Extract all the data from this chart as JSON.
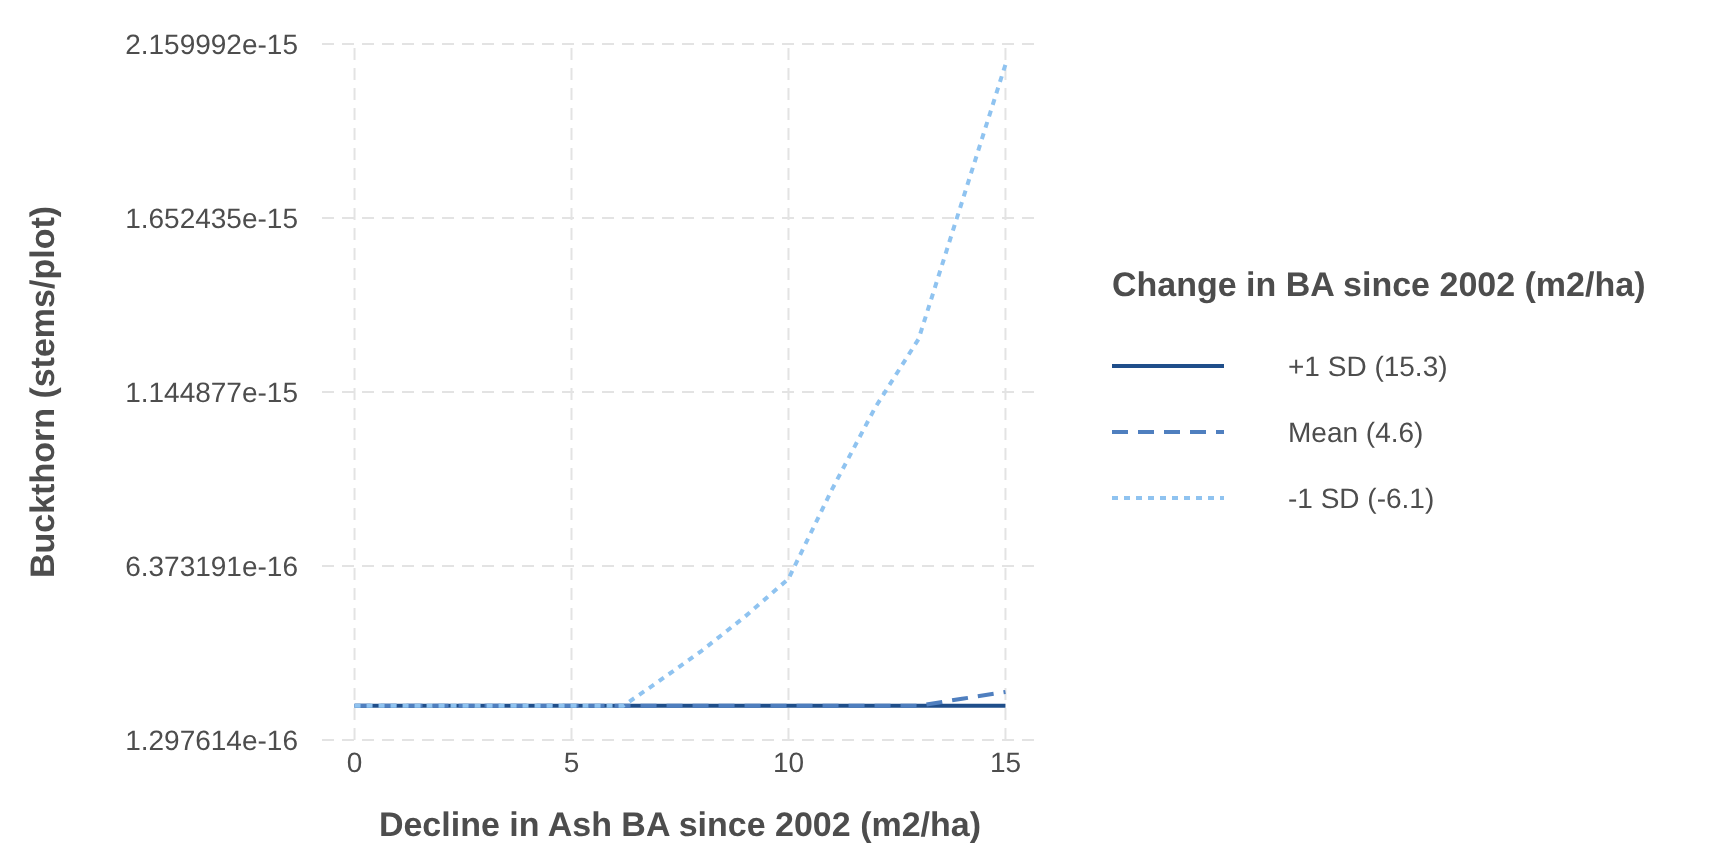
{
  "chart_data": {
    "type": "line",
    "xlabel": "Decline in Ash BA since 2002 (m2/ha)",
    "ylabel": "Buckthorn (stems/plot)",
    "legend_title": "Change in BA since 2002 (m2/ha)",
    "legend": "right",
    "grid": true,
    "xlim": [
      -0.75,
      15.75
    ],
    "xticks": [
      0,
      5,
      10,
      15
    ],
    "ylim": [
      1.297614e-16,
      2.159992e-15
    ],
    "yticks": [
      1.297614e-16,
      6.373191e-16,
      1.144877e-15,
      1.652435e-15,
      2.159992e-15
    ],
    "series": [
      {
        "name": "+1 SD (15.3)",
        "color": "#1f4e8a",
        "line_style": "solid",
        "x": [
          0,
          15
        ],
        "values": [
          2.3e-16,
          2.3e-16
        ]
      },
      {
        "name": "Mean (4.6)",
        "color": "#4f7fbf",
        "line_style": "dashed",
        "x": [
          0,
          12.5,
          13,
          14,
          15
        ],
        "values": [
          2.3e-16,
          2.3e-16,
          2.3e-16,
          2.5e-16,
          2.7e-16
        ]
      },
      {
        "name": "-1 SD (-6.1)",
        "color": "#8fc3f0",
        "line_style": "dotted",
        "x": [
          0,
          6.2,
          7,
          8,
          9,
          10,
          11,
          12,
          13,
          13.5,
          14,
          15
        ],
        "values": [
          2.3e-16,
          2.3e-16,
          3e-16,
          3.9e-16,
          4.9e-16,
          6e-16,
          8.6e-16,
          1.1e-15,
          1.3e-15,
          1.5e-15,
          1.7e-15,
          2.1e-15
        ]
      }
    ]
  }
}
